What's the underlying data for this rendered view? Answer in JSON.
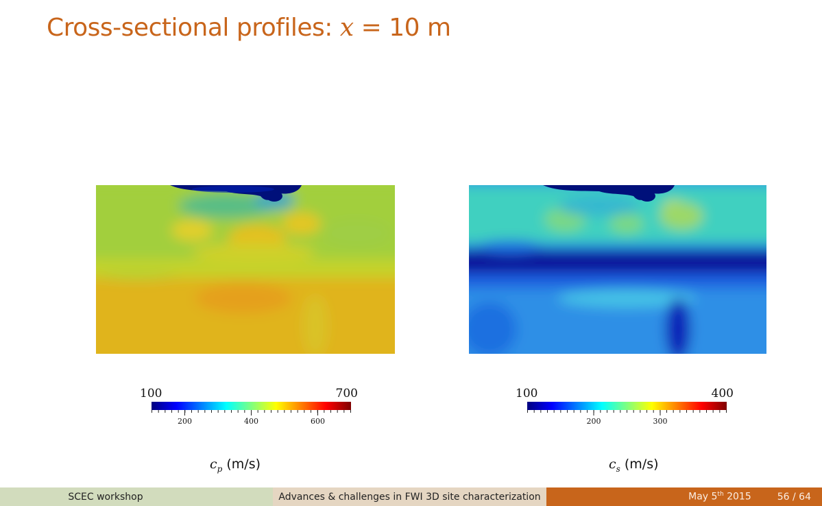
{
  "title": {
    "prefix": "Cross-sectional profiles: ",
    "var": "x",
    "eq": " = ",
    "num": "10",
    "unit": " m"
  },
  "colormap": [
    "#00007f",
    "#0000ff",
    "#007fff",
    "#00ffff",
    "#7fff7f",
    "#ffff00",
    "#ff7f00",
    "#ff0000",
    "#7f0000"
  ],
  "left_plot": {
    "colorbar": {
      "min": "100",
      "max": "700",
      "tick_labels": [
        "200",
        "400",
        "600"
      ],
      "tick_values": [
        200,
        400,
        600
      ],
      "range": [
        100,
        700
      ]
    },
    "quantity_symbol": "c",
    "quantity_sub": "p",
    "quantity_unit": " (m/s)"
  },
  "right_plot": {
    "colorbar": {
      "min": "100",
      "max": "400",
      "tick_labels": [
        "200",
        "300"
      ],
      "tick_values": [
        200,
        300
      ],
      "range": [
        100,
        400
      ]
    },
    "quantity_symbol": "c",
    "quantity_sub": "s",
    "quantity_unit": " (m/s)"
  },
  "footer": {
    "left": "SCEC workshop",
    "center": "Advances & challenges in FWI 3D site characterization",
    "date_prefix": "May 5",
    "date_sup": "th",
    "date_year": " 2015",
    "page": "56 / 64"
  }
}
